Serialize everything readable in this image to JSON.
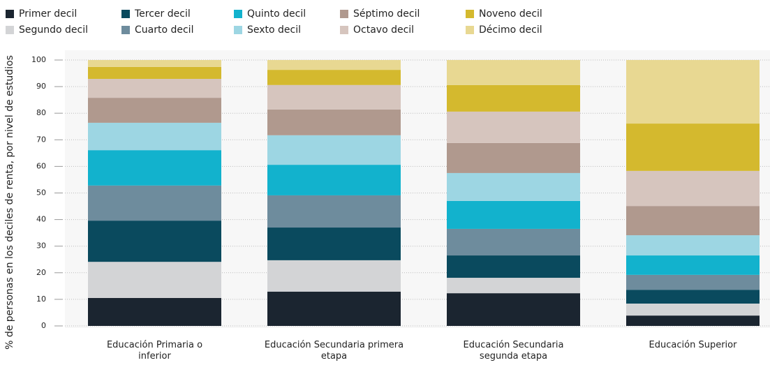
{
  "chart_data": {
    "type": "stacked_bar",
    "y_label": "% de personas en los deciles de renta, por nivel de estudios",
    "categories": [
      "Educación Primaria o inferior",
      "Educación Secundaria primera etapa",
      "Educación Secundaria segunda etapa",
      "Educación Superior"
    ],
    "series": [
      {
        "name": "Primer decil",
        "color": "#1b2530",
        "values": [
          10.5,
          12.9,
          12.3,
          3.9
        ]
      },
      {
        "name": "Segundo decil",
        "color": "#d3d4d6",
        "values": [
          13.6,
          11.8,
          5.8,
          4.5
        ]
      },
      {
        "name": "Tercer decil",
        "color": "#0a4a5e",
        "values": [
          15.5,
          12.3,
          8.4,
          5.2
        ]
      },
      {
        "name": "Cuarto decil",
        "color": "#6e8c9d",
        "values": [
          13.2,
          12.1,
          10.0,
          5.6
        ]
      },
      {
        "name": "Quinto decil",
        "color": "#12b2cd",
        "values": [
          13.3,
          11.5,
          10.5,
          7.3
        ]
      },
      {
        "name": "Sexto decil",
        "color": "#9dd6e3",
        "values": [
          10.3,
          11.1,
          10.5,
          7.6
        ]
      },
      {
        "name": "Séptimo decil",
        "color": "#b0998e",
        "values": [
          9.4,
          9.7,
          11.3,
          11.0
        ]
      },
      {
        "name": "Octavo decil",
        "color": "#d6c5be",
        "values": [
          7.1,
          9.2,
          11.8,
          13.2
        ]
      },
      {
        "name": "Noveno decil",
        "color": "#d4b92e",
        "values": [
          4.5,
          5.7,
          10.0,
          17.8
        ]
      },
      {
        "name": "Décimo decil",
        "color": "#e8d892",
        "values": [
          2.6,
          3.7,
          9.4,
          23.9
        ]
      }
    ],
    "ylim": [
      0,
      100
    ],
    "yticks": [
      0,
      10,
      20,
      30,
      40,
      50,
      60,
      70,
      80,
      90,
      100
    ],
    "grid": true
  }
}
